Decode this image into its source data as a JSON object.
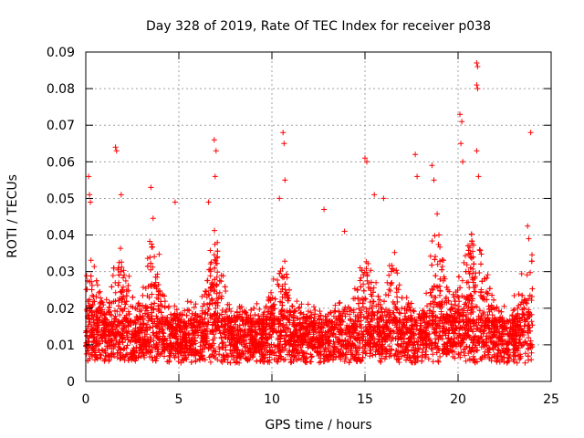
{
  "chart_data": {
    "type": "scatter",
    "title": "Day 328 of 2019, Rate Of TEC Index for receiver p038",
    "xlabel": "GPS time / hours",
    "ylabel": "ROTI / TECUs",
    "xlim": [
      0,
      25
    ],
    "ylim": [
      0,
      0.09
    ],
    "xticks": [
      0,
      5,
      10,
      15,
      20,
      25
    ],
    "xtick_labels": [
      "0",
      "5",
      "10",
      "15",
      "20",
      "25"
    ],
    "yticks": [
      0,
      0.01,
      0.02,
      0.03,
      0.04,
      0.05,
      0.06,
      0.07,
      0.08,
      0.09
    ],
    "ytick_labels": [
      "0",
      "0.01",
      "0.02",
      "0.03",
      "0.04",
      "0.05",
      "0.06",
      "0.07",
      "0.08",
      "0.09"
    ],
    "grid": true,
    "marker": "+",
    "color": "#ff0000",
    "x_extent": [
      0,
      24
    ],
    "baseline_roti": 0.012,
    "notable_points": [
      {
        "x": 0.15,
        "y": 0.056
      },
      {
        "x": 0.2,
        "y": 0.051
      },
      {
        "x": 0.25,
        "y": 0.049
      },
      {
        "x": 1.6,
        "y": 0.064
      },
      {
        "x": 1.65,
        "y": 0.063
      },
      {
        "x": 1.9,
        "y": 0.051
      },
      {
        "x": 3.5,
        "y": 0.053
      },
      {
        "x": 4.8,
        "y": 0.049
      },
      {
        "x": 6.9,
        "y": 0.066
      },
      {
        "x": 7.0,
        "y": 0.063
      },
      {
        "x": 6.95,
        "y": 0.056
      },
      {
        "x": 6.6,
        "y": 0.049
      },
      {
        "x": 10.6,
        "y": 0.068
      },
      {
        "x": 10.65,
        "y": 0.065
      },
      {
        "x": 10.7,
        "y": 0.055
      },
      {
        "x": 10.4,
        "y": 0.05
      },
      {
        "x": 12.8,
        "y": 0.047
      },
      {
        "x": 13.9,
        "y": 0.041
      },
      {
        "x": 15.0,
        "y": 0.061
      },
      {
        "x": 15.1,
        "y": 0.06
      },
      {
        "x": 15.5,
        "y": 0.051
      },
      {
        "x": 16.0,
        "y": 0.05
      },
      {
        "x": 17.7,
        "y": 0.062
      },
      {
        "x": 17.8,
        "y": 0.056
      },
      {
        "x": 18.6,
        "y": 0.059
      },
      {
        "x": 18.7,
        "y": 0.055
      },
      {
        "x": 20.1,
        "y": 0.073
      },
      {
        "x": 20.2,
        "y": 0.071
      },
      {
        "x": 20.15,
        "y": 0.065
      },
      {
        "x": 20.25,
        "y": 0.06
      },
      {
        "x": 21.0,
        "y": 0.087
      },
      {
        "x": 21.05,
        "y": 0.086
      },
      {
        "x": 21.0,
        "y": 0.081
      },
      {
        "x": 21.05,
        "y": 0.08
      },
      {
        "x": 21.0,
        "y": 0.063
      },
      {
        "x": 21.1,
        "y": 0.056
      },
      {
        "x": 23.9,
        "y": 0.068
      },
      {
        "x": 23.8,
        "y": 0.039
      }
    ]
  }
}
